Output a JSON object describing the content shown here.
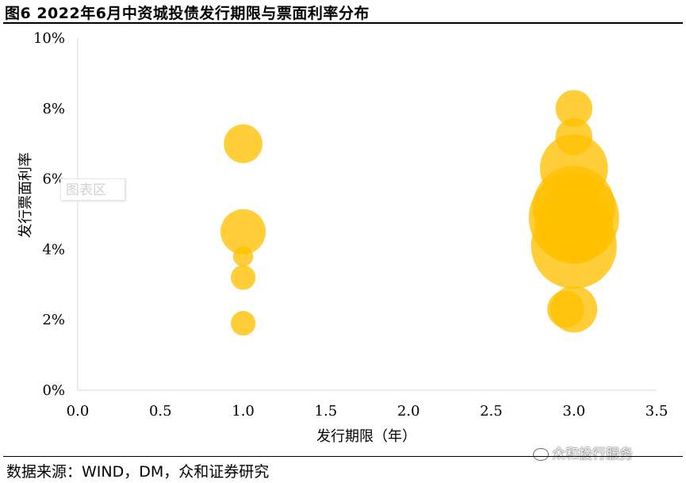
{
  "title": "图6 2022年6月中资城投债发行期限与票面利率分布",
  "source": "数据来源：WIND，DM，众和证券研究",
  "watermark": "众和投行服务",
  "chart_area_label": "图表区",
  "chart_data": {
    "type": "scatter",
    "subtype": "bubble",
    "title": "图6 2022年6月中资城投债发行期限与票面利率分布",
    "xlabel": "发行期限（年）",
    "ylabel": "发行票面利率",
    "xlim": [
      0,
      3.5
    ],
    "ylim": [
      0,
      0.1
    ],
    "x_ticks": [
      "0.0",
      "0.5",
      "1.0",
      "1.5",
      "2.0",
      "2.5",
      "3.0",
      "3.5"
    ],
    "y_ticks": [
      "0%",
      "2%",
      "4%",
      "6%",
      "8%",
      "10%"
    ],
    "grid": false,
    "color": "#FFC000",
    "series": [
      {
        "points": [
          {
            "x": 1.0,
            "y": 0.07,
            "size": 1.1
          },
          {
            "x": 1.0,
            "y": 0.045,
            "size": 1.5
          },
          {
            "x": 1.0,
            "y": 0.038,
            "size": 0.3
          },
          {
            "x": 1.0,
            "y": 0.032,
            "size": 0.45
          },
          {
            "x": 1.0,
            "y": 0.019,
            "size": 0.45
          },
          {
            "x": 3.0,
            "y": 0.08,
            "size": 1.0
          },
          {
            "x": 3.0,
            "y": 0.072,
            "size": 1.0
          },
          {
            "x": 3.0,
            "y": 0.063,
            "size": 3.4
          },
          {
            "x": 3.0,
            "y": 0.052,
            "size": 5.0
          },
          {
            "x": 3.0,
            "y": 0.049,
            "size": 6.0
          },
          {
            "x": 3.0,
            "y": 0.047,
            "size": 4.5
          },
          {
            "x": 3.0,
            "y": 0.041,
            "size": 5.4
          },
          {
            "x": 2.95,
            "y": 0.023,
            "size": 1.0
          },
          {
            "x": 3.0,
            "y": 0.023,
            "size": 1.6
          }
        ]
      }
    ]
  }
}
